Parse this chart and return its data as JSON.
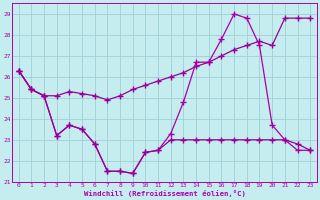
{
  "xlabel": "Windchill (Refroidissement éolien,°C)",
  "bg_color": "#c5ecee",
  "line_color1": "#990099",
  "line_color2": "#aa00aa",
  "grid_color": "#9ecfd4",
  "xlim": [
    -0.5,
    23.5
  ],
  "ylim": [
    21,
    29.5
  ],
  "yticks": [
    21,
    22,
    23,
    24,
    25,
    26,
    27,
    28,
    29
  ],
  "xticks": [
    0,
    1,
    2,
    3,
    4,
    5,
    6,
    7,
    8,
    9,
    10,
    11,
    12,
    13,
    14,
    15,
    16,
    17,
    18,
    19,
    20,
    21,
    22,
    23
  ],
  "series1_x": [
    0,
    1,
    2,
    3,
    4,
    5,
    6,
    7,
    8,
    9,
    10,
    11,
    12,
    13,
    14,
    15,
    16,
    17,
    18,
    19,
    20,
    21,
    22,
    23
  ],
  "series1_y": [
    26.3,
    25.4,
    25.1,
    25.1,
    25.3,
    25.2,
    25.1,
    24.9,
    25.1,
    25.4,
    25.6,
    25.8,
    26.0,
    26.2,
    26.5,
    26.7,
    27.0,
    27.3,
    27.5,
    27.7,
    27.5,
    28.8,
    28.8,
    28.8
  ],
  "series2_x": [
    0,
    1,
    2,
    3,
    4,
    5,
    6,
    7,
    8,
    9,
    10,
    11,
    12,
    13,
    14,
    15,
    16,
    17,
    18,
    19,
    20,
    21,
    22,
    23
  ],
  "series2_y": [
    26.3,
    25.4,
    25.1,
    23.2,
    23.7,
    23.5,
    22.8,
    21.5,
    21.5,
    21.4,
    22.4,
    22.5,
    23.3,
    24.8,
    26.7,
    26.7,
    27.8,
    29.0,
    28.8,
    27.5,
    23.7,
    23.0,
    22.5,
    22.5
  ],
  "series3_x": [
    0,
    1,
    2,
    3,
    4,
    5,
    6,
    7,
    8,
    9,
    10,
    11,
    12,
    13,
    14,
    15,
    16,
    17,
    18,
    19,
    20,
    21,
    22,
    23
  ],
  "series3_y": [
    26.3,
    25.4,
    25.1,
    23.2,
    23.7,
    23.5,
    22.8,
    21.5,
    21.5,
    21.4,
    22.4,
    22.5,
    23.0,
    23.0,
    23.0,
    23.0,
    23.0,
    23.0,
    23.0,
    23.0,
    23.0,
    23.0,
    22.8,
    22.5
  ]
}
